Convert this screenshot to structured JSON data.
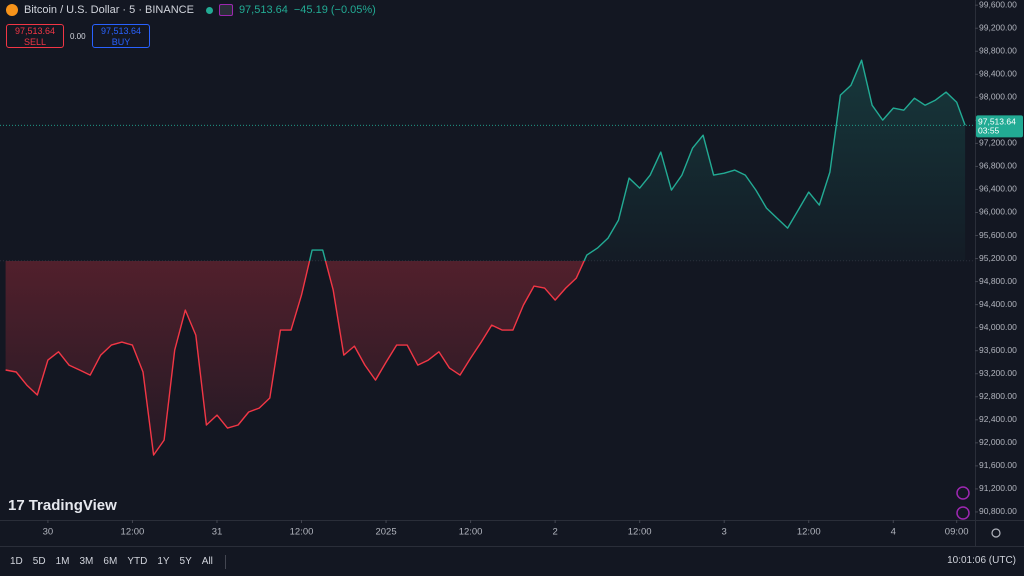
{
  "ui": {
    "symbol": "Bitcoin / U.S. Dollar · 5 · BINANCE",
    "last": "97,513.64",
    "change": "−45.19 (−0.05%)",
    "sell_price": "97,513.64",
    "sell": "SELL",
    "spread": "0.00",
    "buy_price": "97,513.64",
    "buy": "BUY",
    "brand": "TradingView",
    "ranges": [
      "1D",
      "5D",
      "1M",
      "3M",
      "6M",
      "YTD",
      "1Y",
      "5Y",
      "All"
    ],
    "clock": "10:01:06 (UTC)"
  },
  "chart_data": {
    "type": "line",
    "x": [
      -6,
      -4.5,
      -3,
      -1.5,
      0,
      1.5,
      3,
      4.5,
      6,
      7.5,
      9,
      10.5,
      12,
      13.5,
      15,
      16.5,
      18,
      19.5,
      21,
      22.5,
      24,
      25.5,
      27,
      28.5,
      30,
      31.5,
      33,
      34.5,
      36,
      37.5,
      39,
      40.5,
      42,
      43.5,
      45,
      46.5,
      48,
      49.5,
      51,
      52.5,
      54,
      55.5,
      57,
      58.5,
      60,
      61.5,
      63,
      64.5,
      66,
      67.5,
      69,
      70.5,
      72,
      73.5,
      75,
      76.5,
      78,
      79.5,
      81,
      82.5,
      84,
      85.5,
      87,
      88.5,
      90,
      91.5,
      93,
      94.5,
      96,
      97.5,
      99,
      100.5,
      102,
      103.5,
      105,
      106.5,
      108,
      109.5,
      111,
      112.5,
      114,
      115.5,
      117,
      118.5,
      120,
      121.5,
      123,
      124.5,
      126,
      127.5,
      129,
      130.2
    ],
    "values": [
      93264,
      93230,
      93003,
      92830,
      93437,
      93580,
      93350,
      93264,
      93177,
      93524,
      93698,
      93750,
      93698,
      93230,
      91788,
      92048,
      93611,
      94305,
      93870,
      92310,
      92482,
      92256,
      92310,
      92535,
      92604,
      92778,
      93958,
      93958,
      94566,
      95347,
      95347,
      94652,
      93524,
      93680,
      93350,
      93090,
      93402,
      93698,
      93698,
      93350,
      93437,
      93580,
      93298,
      93177,
      93472,
      93750,
      94045,
      93958,
      93958,
      94392,
      94722,
      94687,
      94479,
      94687,
      94861,
      95260,
      95381,
      95555,
      95868,
      96597,
      96423,
      96649,
      97048,
      96388,
      96649,
      97117,
      97343,
      96649,
      96683,
      96736,
      96649,
      96388,
      96076,
      95902,
      95729,
      96041,
      96354,
      96128,
      96701,
      98038,
      98211,
      98645,
      97864,
      97604,
      97812,
      97777,
      97985,
      97864,
      97951,
      98090,
      97916,
      97513.64
    ],
    "baseline": 95160,
    "colors": {
      "up": "#22ab94",
      "down": "#f23645"
    },
    "price_label": {
      "value": 97513.64,
      "label": "97,513.64",
      "countdown": "03:55"
    },
    "xlim": [
      -6.8,
      131.6
    ],
    "xticks": [
      {
        "value": 0,
        "label": "30"
      },
      {
        "value": 12,
        "label": "12:00"
      },
      {
        "value": 24,
        "label": "31"
      },
      {
        "value": 36,
        "label": "12:00"
      },
      {
        "value": 48,
        "label": "2025"
      },
      {
        "value": 60,
        "label": "12:00"
      },
      {
        "value": 72,
        "label": "2"
      },
      {
        "value": 84,
        "label": "12:00"
      },
      {
        "value": 96,
        "label": "3"
      },
      {
        "value": 108,
        "label": "12:00"
      },
      {
        "value": 120,
        "label": "4"
      },
      {
        "value": 129,
        "label": "09:00"
      }
    ],
    "ylim": [
      90660,
      99690
    ],
    "yticks": [
      {
        "value": 90800,
        "label": "90,800.00"
      },
      {
        "value": 91200,
        "label": "91,200.00"
      },
      {
        "value": 91600,
        "label": "91,600.00"
      },
      {
        "value": 92000,
        "label": "92,000.00"
      },
      {
        "value": 92400,
        "label": "92,400.00"
      },
      {
        "value": 92800,
        "label": "92,800.00"
      },
      {
        "value": 93200,
        "label": "93,200.00"
      },
      {
        "value": 93600,
        "label": "93,600.00"
      },
      {
        "value": 94000,
        "label": "94,000.00"
      },
      {
        "value": 94400,
        "label": "94,400.00"
      },
      {
        "value": 94800,
        "label": "94,800.00"
      },
      {
        "value": 95200,
        "label": "95,200.00"
      },
      {
        "value": 95600,
        "label": "95,600.00"
      },
      {
        "value": 96000,
        "label": "96,000.00"
      },
      {
        "value": 96400,
        "label": "96,400.00"
      },
      {
        "value": 96800,
        "label": "96,800.00"
      },
      {
        "value": 97200,
        "label": "97,200.00"
      },
      {
        "value": 97600,
        "label": "97,600.00"
      },
      {
        "value": 98000,
        "label": "98,000.00"
      },
      {
        "value": 98400,
        "label": "98,400.00"
      },
      {
        "value": 98800,
        "label": "98,800.00"
      },
      {
        "value": 99200,
        "label": "99,200.00"
      },
      {
        "value": 99600,
        "label": "99,600.00"
      }
    ],
    "grid": false
  }
}
